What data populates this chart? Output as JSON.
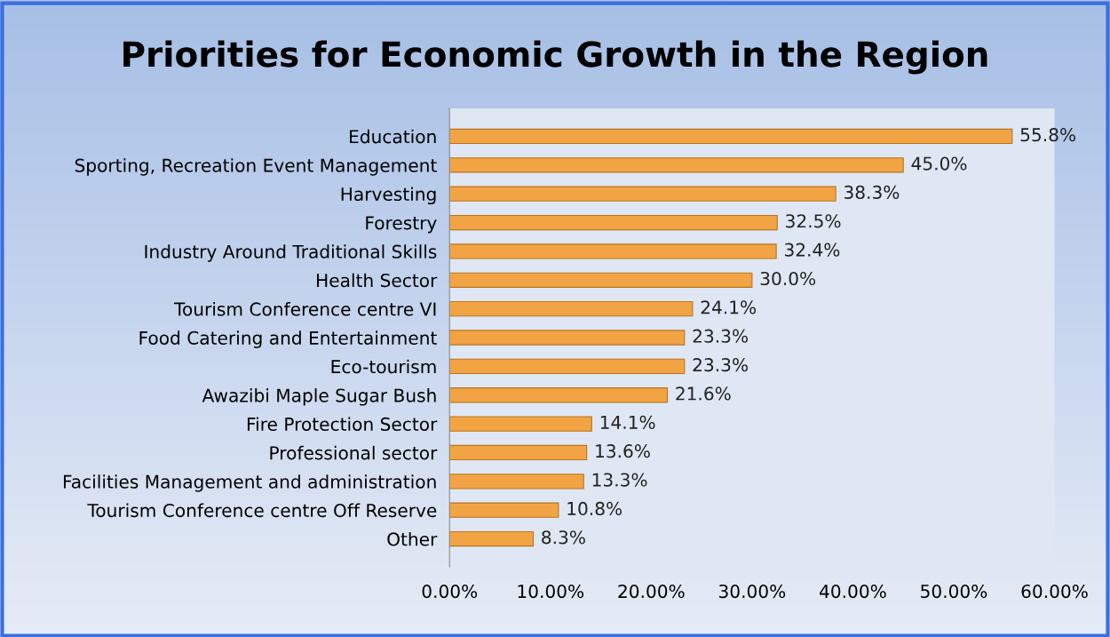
{
  "chart_data": {
    "type": "bar",
    "orientation": "horizontal",
    "title": "Priorities for Economic Growth in the Region",
    "categories": [
      "Education",
      "Sporting, Recreation Event Management",
      "Harvesting",
      "Forestry",
      "Industry Around Traditional Skills",
      "Health Sector",
      "Tourism Conference centre VI",
      "Food Catering and Entertainment",
      "Eco-tourism",
      "Awazibi Maple Sugar Bush",
      "Fire Protection Sector",
      "Professional sector",
      "Facilities Management and administration",
      "Tourism Conference centre Off Reserve",
      "Other"
    ],
    "values": [
      55.8,
      45.0,
      38.3,
      32.5,
      32.4,
      30.0,
      24.1,
      23.3,
      23.3,
      21.6,
      14.1,
      13.6,
      13.3,
      10.8,
      8.3
    ],
    "value_labels": [
      "55.8%",
      "45.0%",
      "38.3%",
      "32.5%",
      "32.4%",
      "30.0%",
      "24.1%",
      "23.3%",
      "23.3%",
      "21.6%",
      "14.1%",
      "13.6%",
      "13.3%",
      "10.8%",
      "8.3%"
    ],
    "color": "#f2a444",
    "xlim": [
      0,
      60
    ],
    "xticks": [
      {
        "value": 0,
        "label": "0.00%"
      },
      {
        "value": 10,
        "label": "10.00%"
      },
      {
        "value": 20,
        "label": "20.00%"
      },
      {
        "value": 30,
        "label": "30.00%"
      },
      {
        "value": 40,
        "label": "40.00%"
      },
      {
        "value": 50,
        "label": "50.00%"
      },
      {
        "value": 60,
        "label": "60.00%"
      }
    ],
    "grid": false,
    "legend": false
  }
}
